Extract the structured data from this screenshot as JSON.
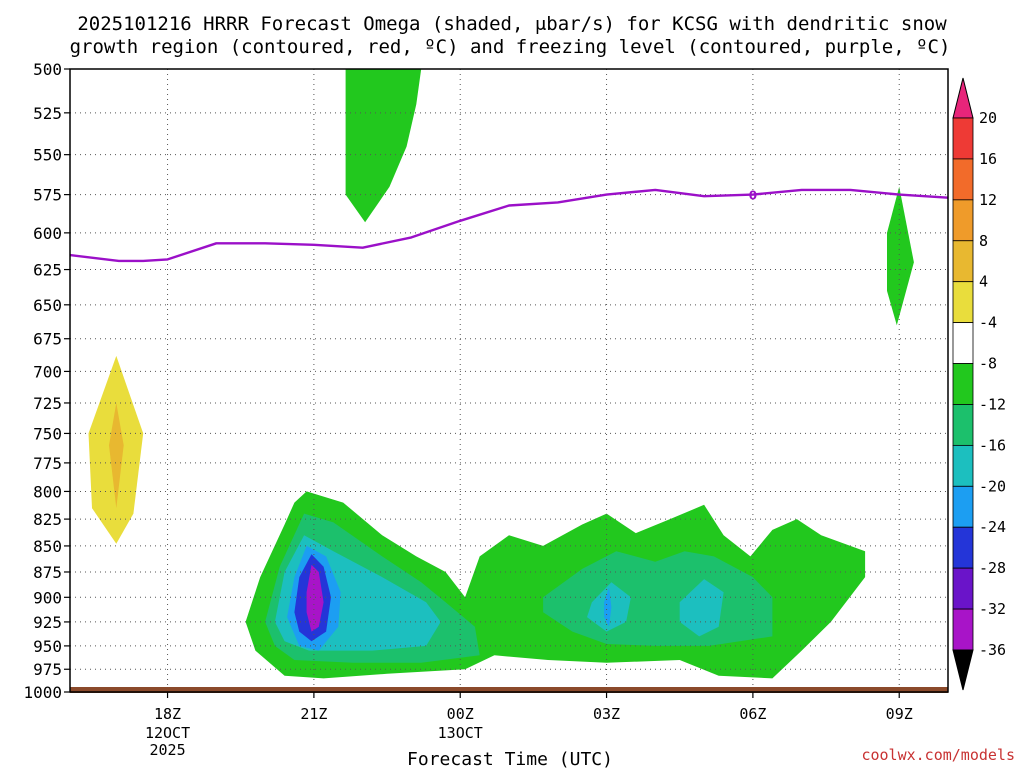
{
  "title_line1": "2025101216 HRRR Forecast Omega (shaded, μbar/s) for KCSG with dendritic snow",
  "title_line2": "growth region (contoured, red, ºC) and freezing level (contoured, purple, ºC)",
  "watermark": "coolwx.com/models",
  "colors": {
    "freezing_level": "#9b10c8",
    "ground": "#8b4a2b",
    "watermark": "#c83232"
  },
  "chart_data": {
    "type": "contour",
    "title": "2025101216 HRRR Forecast Omega (shaded, μbar/s) for KCSG with dendritic snow growth region (contoured, red, ºC) and freezing level (contoured, purple, ºC)",
    "xlabel": "Forecast Time (UTC)",
    "ylabel": "",
    "x_range_hours_after_16Z_12Oct": [
      0,
      18
    ],
    "y_range_hPa": [
      1000,
      500
    ],
    "y_scale": "pressure (log-like)",
    "grid": true,
    "y_ticks": [
      500,
      525,
      550,
      575,
      600,
      625,
      650,
      675,
      700,
      725,
      750,
      775,
      800,
      825,
      850,
      875,
      900,
      925,
      950,
      975,
      1000
    ],
    "x_ticks": [
      {
        "hour": 2,
        "label": "18Z",
        "sub": [
          "12OCT",
          "2025"
        ]
      },
      {
        "hour": 5,
        "label": "21Z",
        "sub": []
      },
      {
        "hour": 8,
        "label": "00Z",
        "sub": [
          "13OCT"
        ]
      },
      {
        "hour": 11,
        "label": "03Z",
        "sub": []
      },
      {
        "hour": 14,
        "label": "06Z",
        "sub": []
      },
      {
        "hour": 17,
        "label": "09Z",
        "sub": []
      }
    ],
    "colorbar": {
      "labels": [
        "20",
        "16",
        "12",
        "8",
        "4",
        "-4",
        "-8",
        "-12",
        "-16",
        "-20",
        "-24",
        "-28",
        "-32",
        "-36"
      ],
      "colors": [
        "#e8257a",
        "#ee3a35",
        "#f26b2a",
        "#ef9b2a",
        "#e8b830",
        "#e9dd3c",
        "#ffffff",
        "#22c81e",
        "#1cc06c",
        "#1cbfbf",
        "#1c9ef2",
        "#2435d8",
        "#6a14c9",
        "#a814c8",
        "#a0a0a0",
        "#000000"
      ]
    },
    "freezing_level_series": {
      "name": "freezing level",
      "x": [
        0,
        1,
        1.5,
        2,
        3,
        4,
        5,
        6,
        7,
        8,
        9,
        10,
        11,
        12,
        13,
        14,
        15,
        16,
        17,
        18
      ],
      "y_hPa": [
        615,
        619,
        619,
        618,
        607,
        607,
        608,
        610,
        603,
        592,
        582,
        580,
        575,
        572,
        576,
        575,
        572,
        572,
        575,
        577
      ]
    },
    "omega_regions": [
      {
        "value": "-4 to -8",
        "description": "upper updraft near 22Z",
        "x_range": [
          5.6,
          7.2
        ],
        "y_range_hPa": [
          500,
          593
        ]
      },
      {
        "value": "-4 to -8",
        "description": "updraft near 09Z",
        "x_range": [
          16.7,
          17.3
        ],
        "y_range_hPa": [
          570,
          665
        ]
      },
      {
        "value": "4 to 8",
        "description": "subsidence near 17Z",
        "x_range": [
          0.4,
          1.5
        ],
        "y_range_hPa": [
          685,
          848
        ]
      },
      {
        "value": "8 to 12",
        "description": "subsidence core",
        "x_range": [
          0.8,
          1.1
        ],
        "y_range_hPa": [
          725,
          815
        ]
      },
      {
        "value": "-4 to -32",
        "description": "low-level updrafts 20Z–08Z",
        "x_range": [
          3.6,
          16.3
        ],
        "y_range_hPa": [
          800,
          985
        ]
      },
      {
        "value": "-28 to -32",
        "description": "strongest updraft core near 21Z",
        "x_range": [
          4.85,
          5.2
        ],
        "y_range_hPa": [
          865,
          935
        ]
      }
    ]
  }
}
